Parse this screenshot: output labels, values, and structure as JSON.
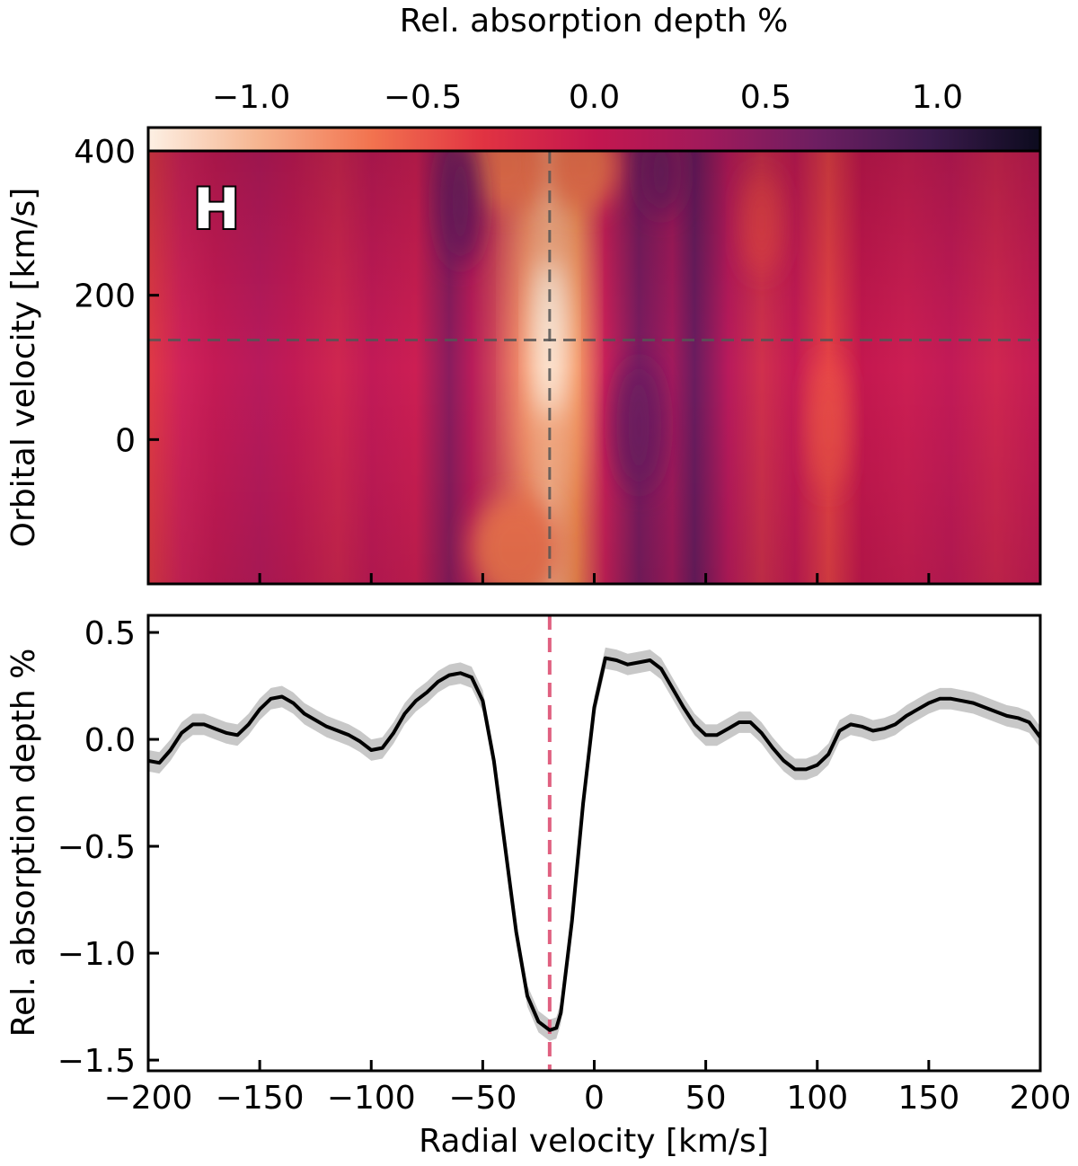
{
  "chart_data": [
    {
      "type": "colorbar",
      "title": "Rel. absorption depth %",
      "range": [
        -1.3,
        1.3
      ],
      "ticks": [
        -1.0,
        -0.5,
        0.0,
        0.5,
        1.0
      ],
      "tick_labels": [
        "−1.0",
        "−0.5",
        "0.0",
        "0.5",
        "1.0"
      ],
      "colormap": [
        "#fdf0e4",
        "#f6b48f",
        "#f2734f",
        "#e13342",
        "#c4174f",
        "#a11a5b",
        "#6d1e61",
        "#3c1a4d",
        "#0c0b1e"
      ]
    },
    {
      "type": "heatmap",
      "panel_label": "H",
      "xlabel": "",
      "ylabel": "Orbital velocity [km/s]",
      "xlim": [
        -200,
        200
      ],
      "ylim": [
        -200,
        400
      ],
      "xticks": [
        -150,
        -100,
        -50,
        0,
        50,
        100,
        150
      ],
      "yticks": [
        0,
        200,
        400
      ],
      "ytick_labels": [
        "0",
        "200",
        "400"
      ],
      "marker_x": -20,
      "marker_y": 138,
      "marker_color": "#555555"
    },
    {
      "type": "line",
      "xlabel": "Radial velocity [km/s]",
      "ylabel": "Rel. absorption depth %",
      "xlim": [
        -200,
        200
      ],
      "ylim": [
        -1.55,
        0.58
      ],
      "xticks": [
        -200,
        -150,
        -100,
        -50,
        0,
        50,
        100,
        150,
        200
      ],
      "xtick_labels": [
        "−200",
        "−150",
        "−100",
        "−50",
        "0",
        "50",
        "100",
        "150",
        "200"
      ],
      "yticks": [
        -1.5,
        -1.0,
        -0.5,
        0.0,
        0.5
      ],
      "ytick_labels": [
        "−1.5",
        "−1.0",
        "−0.5",
        "0.0",
        "0.5"
      ],
      "marker_x": -20,
      "marker_color": "#e06080",
      "line_color": "#000000",
      "band_color": "#c8c8c8",
      "band_halfwidth": 0.05,
      "x": [
        -200,
        -195,
        -190,
        -185,
        -180,
        -175,
        -170,
        -165,
        -160,
        -155,
        -150,
        -145,
        -140,
        -135,
        -130,
        -125,
        -120,
        -115,
        -110,
        -105,
        -100,
        -95,
        -90,
        -85,
        -80,
        -75,
        -70,
        -65,
        -60,
        -55,
        -50,
        -45,
        -40,
        -35,
        -30,
        -25,
        -20,
        -17,
        -15,
        -10,
        -5,
        0,
        5,
        10,
        15,
        20,
        25,
        30,
        35,
        40,
        45,
        50,
        55,
        60,
        65,
        70,
        75,
        80,
        85,
        90,
        95,
        100,
        105,
        110,
        115,
        120,
        125,
        130,
        135,
        140,
        145,
        150,
        155,
        160,
        165,
        170,
        175,
        180,
        185,
        190,
        195,
        200
      ],
      "y": [
        -0.1,
        -0.11,
        -0.05,
        0.03,
        0.07,
        0.07,
        0.05,
        0.03,
        0.02,
        0.07,
        0.14,
        0.19,
        0.2,
        0.17,
        0.12,
        0.09,
        0.06,
        0.04,
        0.02,
        -0.01,
        -0.05,
        -0.04,
        0.03,
        0.12,
        0.18,
        0.22,
        0.27,
        0.3,
        0.31,
        0.29,
        0.18,
        -0.1,
        -0.5,
        -0.9,
        -1.2,
        -1.32,
        -1.36,
        -1.35,
        -1.28,
        -0.85,
        -0.3,
        0.15,
        0.38,
        0.37,
        0.35,
        0.36,
        0.37,
        0.33,
        0.24,
        0.15,
        0.07,
        0.02,
        0.02,
        0.05,
        0.08,
        0.08,
        0.03,
        -0.04,
        -0.1,
        -0.14,
        -0.14,
        -0.12,
        -0.07,
        0.04,
        0.07,
        0.06,
        0.04,
        0.05,
        0.07,
        0.11,
        0.14,
        0.17,
        0.19,
        0.19,
        0.18,
        0.17,
        0.15,
        0.13,
        0.11,
        0.1,
        0.08,
        0.01
      ]
    }
  ]
}
